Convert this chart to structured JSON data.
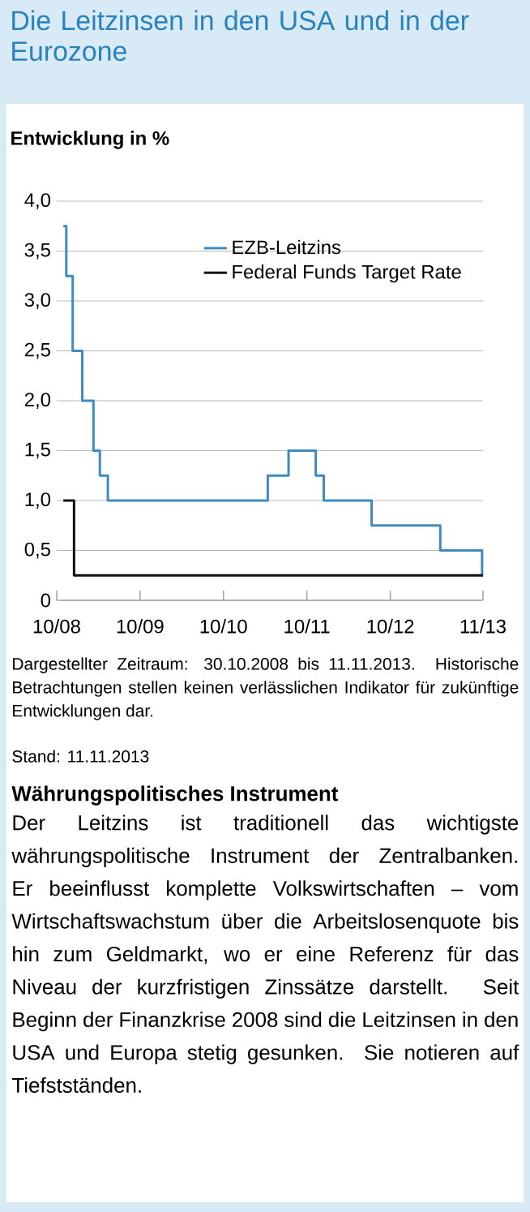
{
  "chart_data": {
    "type": "step",
    "title": "Die Leitzinsen in den USA und in der Eurozone",
    "ylabel": "Entwicklung in %",
    "series": [
      {
        "name": "EZB-Leitzins",
        "color": "#3d8bc0",
        "x": [
          "2008-10-30",
          "2008-11-12",
          "2008-12-10",
          "2009-01-21",
          "2009-03-11",
          "2009-04-08",
          "2009-05-13",
          "2011-04-13",
          "2011-07-13",
          "2011-11-09",
          "2011-12-14",
          "2012-07-11",
          "2013-05-08",
          "2013-11-07",
          "2013-11-11"
        ],
        "values": [
          3.75,
          3.25,
          2.5,
          2.0,
          1.5,
          1.25,
          1.0,
          1.25,
          1.5,
          1.25,
          1.0,
          0.75,
          0.5,
          0.25,
          0.25
        ]
      },
      {
        "name": "Federal Funds Target Rate",
        "color": "#111111",
        "x": [
          "2008-10-30",
          "2008-12-16",
          "2013-11-11"
        ],
        "values": [
          1.0,
          0.25,
          0.25
        ]
      }
    ],
    "xlim": [
      "2008-10-01",
      "2013-11-11"
    ],
    "xticks": [
      {
        "value": "2008-10-01",
        "label": "10/08"
      },
      {
        "value": "2009-10-01",
        "label": "10/09"
      },
      {
        "value": "2010-10-01",
        "label": "10/10"
      },
      {
        "value": "2011-10-01",
        "label": "10/11"
      },
      {
        "value": "2012-10-01",
        "label": "10/12"
      },
      {
        "value": "2013-11-11",
        "label": "11/13"
      }
    ],
    "ylim": [
      0,
      4
    ],
    "yticks": [
      0,
      {
        "value": 0.5,
        "label": "0,5"
      },
      {
        "value": 1,
        "label": "1,0"
      },
      {
        "value": 1.5,
        "label": "1,5"
      },
      {
        "value": 2,
        "label": "2,0"
      },
      {
        "value": 2.5,
        "label": "2,5"
      },
      {
        "value": 3,
        "label": "3,0"
      },
      {
        "value": 3.5,
        "label": "3,5"
      },
      {
        "value": 4,
        "label": "4,0"
      }
    ],
    "grid": "y",
    "legend": "top right",
    "annotations": [
      "Dargestellter Zeitraum: 30.10.2008 bis 11.11.2013. Historische Betrachtungen stellen keinen verlässlichen Indikator für zukünftige Entwicklungen dar.",
      "Stand: 11.11.2013",
      "Währungspolitisches Instrument",
      "Der Leitzins ist traditionell das wichtigste währungspolitische Instrument der Zentralbanken. Er beeinflusst komplette Volkswirtschaften – vom Wirtschaftswachstum über die Arbeitslosenquote bis hin zum Geldmarkt, wo er eine Referenz für das Niveau der kurzfristigen Zinssätze darstellt. Seit Beginn der Finanzkrise 2008 sind die Leitzinsen in den USA und Europa stetig gesunken. Sie notieren auf Tiefstständen."
    ]
  }
}
